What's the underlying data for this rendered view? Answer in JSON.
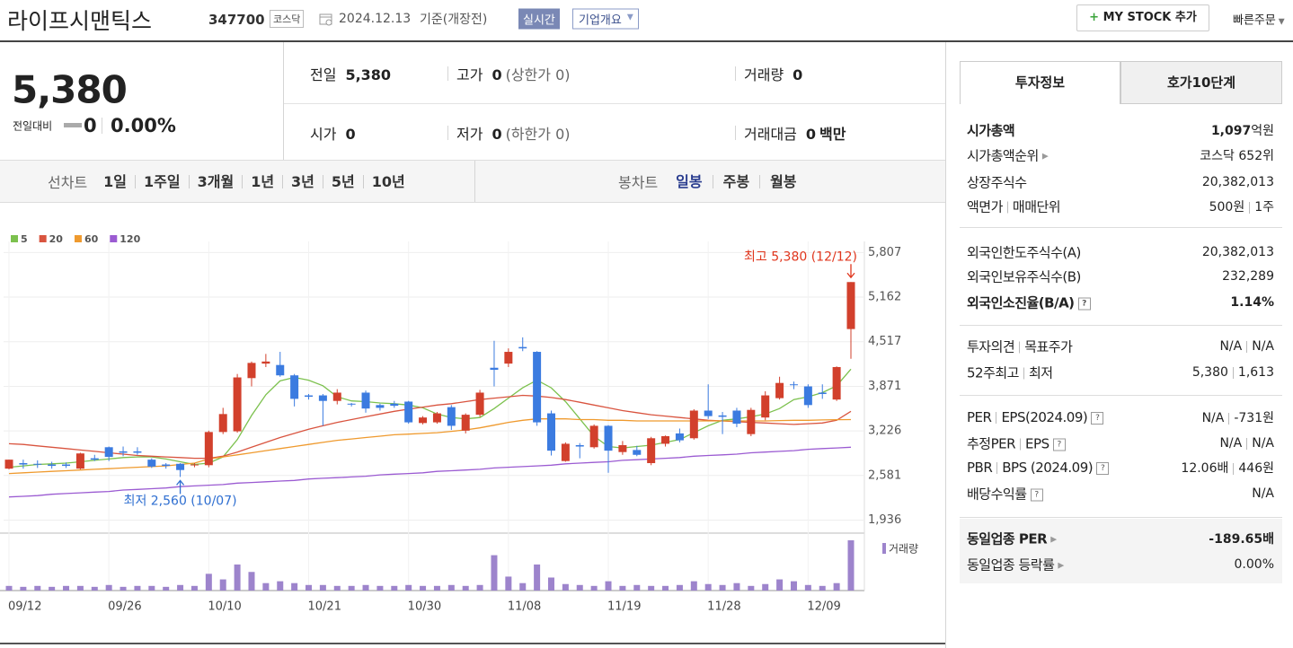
{
  "header": {
    "name": "라이프시맨틱스",
    "code": "347700",
    "market": "코스닥",
    "date": "2024.12.13",
    "basis": "기준(개장전)",
    "realtime": "실시간",
    "company_info": "기업개요",
    "my_stock": "MY STOCK 추가",
    "quick_order": "빠른주문"
  },
  "quote": {
    "price": "5,380",
    "change_label": "전일대비",
    "change": "0",
    "change_rate": "0.00%",
    "items": [
      {
        "label": "전일",
        "value": "5,380"
      },
      {
        "label": "고가",
        "value": "0",
        "note": "(상한가 0)"
      },
      {
        "label": "거래량",
        "value": "0"
      },
      {
        "label": "시가",
        "value": "0"
      },
      {
        "label": "저가",
        "value": "0",
        "note": "(하한가 0)"
      },
      {
        "label": "거래대금",
        "value": "0",
        "unit": "백만"
      }
    ]
  },
  "chart_tabs": {
    "line_label": "선차트",
    "line_periods": [
      "1일",
      "1주일",
      "3개월",
      "1년",
      "3년",
      "5년",
      "10년"
    ],
    "candle_label": "봉차트",
    "candle_periods": [
      "일봉",
      "주봉",
      "월봉"
    ]
  },
  "chart_data": {
    "type": "candlestick",
    "categories": [
      "09/12",
      null,
      null,
      null,
      null,
      null,
      null,
      "09/26",
      null,
      null,
      null,
      null,
      null,
      null,
      "10/10",
      null,
      null,
      null,
      null,
      null,
      null,
      "10/21",
      null,
      null,
      null,
      null,
      null,
      null,
      "10/30",
      null,
      null,
      null,
      null,
      null,
      null,
      "11/08",
      null,
      null,
      null,
      null,
      null,
      null,
      "11/19",
      null,
      null,
      null,
      null,
      null,
      null,
      "11/28",
      null,
      null,
      null,
      null,
      null,
      null,
      "12/09",
      null,
      null,
      null
    ],
    "open": [
      2680,
      2760,
      2750,
      2740,
      2740,
      2680,
      2830,
      2990,
      2930,
      2930,
      2810,
      2740,
      2750,
      2730,
      2730,
      3210,
      3220,
      3990,
      4200,
      4180,
      4030,
      3740,
      3740,
      3660,
      3620,
      3780,
      3600,
      3620,
      3650,
      3340,
      3350,
      3570,
      3230,
      3460,
      4140,
      4200,
      4440,
      4370,
      3480,
      2790,
      3020,
      2990,
      3300,
      2920,
      2950,
      2760,
      3040,
      3190,
      3120,
      3520,
      3450,
      3520,
      3180,
      3420,
      3700,
      3900,
      3870,
      3780,
      3680,
      4700
    ],
    "high": [
      2810,
      2810,
      2800,
      2780,
      2770,
      2910,
      2880,
      3000,
      3000,
      2990,
      2830,
      2760,
      2760,
      2760,
      3230,
      3560,
      4050,
      4230,
      4340,
      4370,
      4050,
      3760,
      3760,
      3830,
      3630,
      3810,
      3620,
      3660,
      3660,
      3440,
      3500,
      3600,
      3480,
      3820,
      4530,
      4420,
      4580,
      4380,
      3520,
      3060,
      3050,
      3320,
      3310,
      3080,
      3010,
      3140,
      3160,
      3260,
      3540,
      3900,
      3500,
      3560,
      3560,
      3800,
      4010,
      3940,
      3900,
      3900,
      4160,
      5380
    ],
    "low": [
      2670,
      2680,
      2690,
      2680,
      2690,
      2670,
      2790,
      2790,
      2860,
      2880,
      2690,
      2680,
      2560,
      2700,
      2700,
      3180,
      3200,
      3870,
      4150,
      4010,
      3580,
      3680,
      3300,
      3610,
      3580,
      3490,
      3520,
      3560,
      3330,
      3320,
      3330,
      3240,
      3190,
      3430,
      3870,
      4150,
      4380,
      3300,
      2870,
      2780,
      2830,
      2970,
      2620,
      2880,
      2860,
      2730,
      3000,
      3060,
      3100,
      3400,
      3180,
      3280,
      3150,
      3380,
      3680,
      3830,
      3560,
      3690,
      3660,
      4270
    ],
    "close": [
      2810,
      2740,
      2740,
      2720,
      2720,
      2900,
      2810,
      2850,
      2910,
      2910,
      2710,
      2720,
      2660,
      2740,
      3210,
      3470,
      4000,
      4210,
      4230,
      4030,
      3690,
      3720,
      3660,
      3780,
      3610,
      3550,
      3560,
      3590,
      3350,
      3420,
      3480,
      3300,
      3460,
      3780,
      4110,
      4370,
      4420,
      3350,
      2940,
      3040,
      3000,
      3300,
      2940,
      3020,
      2880,
      3120,
      3150,
      3090,
      3520,
      3440,
      3430,
      3330,
      3530,
      3740,
      3920,
      3890,
      3600,
      3760,
      4150,
      5380
    ],
    "up_color": "#d2402c",
    "down_color": "#3b7be0",
    "series": [
      {
        "name": "5",
        "color": "#7cc14e",
        "values": [
          2700,
          2720,
          2740,
          2750,
          2760,
          2780,
          2800,
          2820,
          2840,
          2850,
          2850,
          2820,
          2780,
          2740,
          2760,
          2850,
          3100,
          3450,
          3750,
          3950,
          4000,
          3960,
          3880,
          3720,
          3660,
          3650,
          3630,
          3620,
          3600,
          3560,
          3470,
          3420,
          3400,
          3420,
          3550,
          3700,
          3850,
          3960,
          3850,
          3650,
          3400,
          3150,
          3000,
          2980,
          3000,
          3020,
          3060,
          3100,
          3200,
          3300,
          3380,
          3400,
          3430,
          3470,
          3550,
          3680,
          3720,
          3780,
          3880,
          4120
        ]
      },
      {
        "name": "20",
        "color": "#d9543f",
        "values": [
          3040,
          3030,
          3010,
          2990,
          2970,
          2950,
          2930,
          2910,
          2890,
          2870,
          2860,
          2850,
          2840,
          2830,
          2830,
          2860,
          2920,
          2990,
          3060,
          3130,
          3190,
          3250,
          3300,
          3350,
          3390,
          3430,
          3470,
          3510,
          3540,
          3570,
          3600,
          3620,
          3650,
          3680,
          3700,
          3720,
          3740,
          3730,
          3710,
          3680,
          3640,
          3600,
          3560,
          3520,
          3490,
          3460,
          3440,
          3420,
          3400,
          3380,
          3370,
          3360,
          3350,
          3340,
          3330,
          3320,
          3330,
          3340,
          3380,
          3510
        ]
      },
      {
        "name": "60",
        "color": "#ef9a2e",
        "values": [
          2610,
          2620,
          2630,
          2640,
          2650,
          2660,
          2670,
          2680,
          2690,
          2700,
          2710,
          2720,
          2740,
          2760,
          2820,
          2850,
          2880,
          2910,
          2940,
          2970,
          3000,
          3030,
          3060,
          3090,
          3110,
          3130,
          3150,
          3170,
          3180,
          3190,
          3200,
          3220,
          3240,
          3270,
          3310,
          3350,
          3380,
          3400,
          3400,
          3400,
          3390,
          3390,
          3380,
          3380,
          3370,
          3370,
          3370,
          3370,
          3370,
          3370,
          3370,
          3370,
          3370,
          3370,
          3375,
          3380,
          3380,
          3385,
          3388,
          3390
        ]
      },
      {
        "name": "120",
        "color": "#9b5bd2",
        "values": [
          2270,
          2280,
          2290,
          2310,
          2320,
          2330,
          2340,
          2350,
          2370,
          2380,
          2390,
          2400,
          2420,
          2430,
          2440,
          2450,
          2470,
          2480,
          2490,
          2500,
          2510,
          2530,
          2540,
          2550,
          2560,
          2570,
          2590,
          2600,
          2610,
          2620,
          2640,
          2650,
          2660,
          2670,
          2690,
          2700,
          2710,
          2720,
          2730,
          2750,
          2760,
          2770,
          2780,
          2800,
          2810,
          2820,
          2830,
          2840,
          2860,
          2870,
          2880,
          2890,
          2910,
          2920,
          2930,
          2940,
          2960,
          2970,
          2980,
          2990
        ]
      }
    ],
    "volume": {
      "name": "거래량",
      "color": "#9d84cc",
      "values": [
        100000,
        80000,
        100000,
        80000,
        100000,
        100000,
        80000,
        120000,
        80000,
        100000,
        100000,
        80000,
        120000,
        100000,
        360000,
        240000,
        560000,
        400000,
        160000,
        200000,
        160000,
        120000,
        120000,
        100000,
        100000,
        120000,
        100000,
        100000,
        120000,
        100000,
        100000,
        120000,
        100000,
        120000,
        760000,
        300000,
        160000,
        560000,
        280000,
        140000,
        120000,
        100000,
        200000,
        100000,
        120000,
        100000,
        100000,
        120000,
        200000,
        140000,
        120000,
        160000,
        100000,
        140000,
        240000,
        200000,
        120000,
        100000,
        160000,
        1080000
      ]
    },
    "ylim": [
      1760,
      5890
    ],
    "yticks": [
      {
        "value": 1936,
        "label": "1,936"
      },
      {
        "value": 2581,
        "label": "2,581"
      },
      {
        "value": 3226,
        "label": "3,226"
      },
      {
        "value": 3871,
        "label": "3,871"
      },
      {
        "value": 4517,
        "label": "4,517"
      },
      {
        "value": 5162,
        "label": "5,162"
      },
      {
        "value": 5807,
        "label": "5,807"
      }
    ],
    "grid": true,
    "annotations": {
      "high": "최고 5,380 (12/12)",
      "low": "최저 2,560 (10/07)"
    }
  },
  "invest": {
    "tabs": [
      "투자정보",
      "호가10단계"
    ],
    "sections": [
      [
        {
          "label": "시가총액",
          "value": "1,097",
          "unit": "억원"
        },
        {
          "label": "시가총액순위",
          "value": "코스닥 652위"
        },
        {
          "label": "상장주식수",
          "value": "20,382,013"
        },
        {
          "label": "액면가",
          "label2": "매매단위",
          "value": "500원",
          "value2": "1주"
        }
      ],
      [
        {
          "label": "외국인한도주식수(A)",
          "value": "20,382,013"
        },
        {
          "label": "외국인보유주식수(B)",
          "value": "232,289"
        },
        {
          "label": "외국인소진율(B/A)",
          "value": "1.14%"
        }
      ],
      [
        {
          "label": "투자의견",
          "label2": "목표주가",
          "value": "N/A",
          "value2": "N/A"
        },
        {
          "label": "52주최고",
          "label2": "최저",
          "value": "5,380",
          "value2": "1,613"
        }
      ],
      [
        {
          "label": "PER",
          "label2": "EPS(2024.09)",
          "value": "N/A",
          "value2": "-731원"
        },
        {
          "label": "추정PER",
          "label2": "EPS",
          "value": "N/A",
          "value2": "N/A"
        },
        {
          "label": "PBR",
          "label2": "BPS (2024.09)",
          "value": "12.06배",
          "value2": "446원"
        },
        {
          "label": "배당수익률",
          "value": "N/A"
        }
      ],
      [
        {
          "label": "동일업종 PER",
          "value": "-189.65배"
        },
        {
          "label": "동일업종 등락률",
          "value": "0.00%"
        }
      ]
    ]
  }
}
